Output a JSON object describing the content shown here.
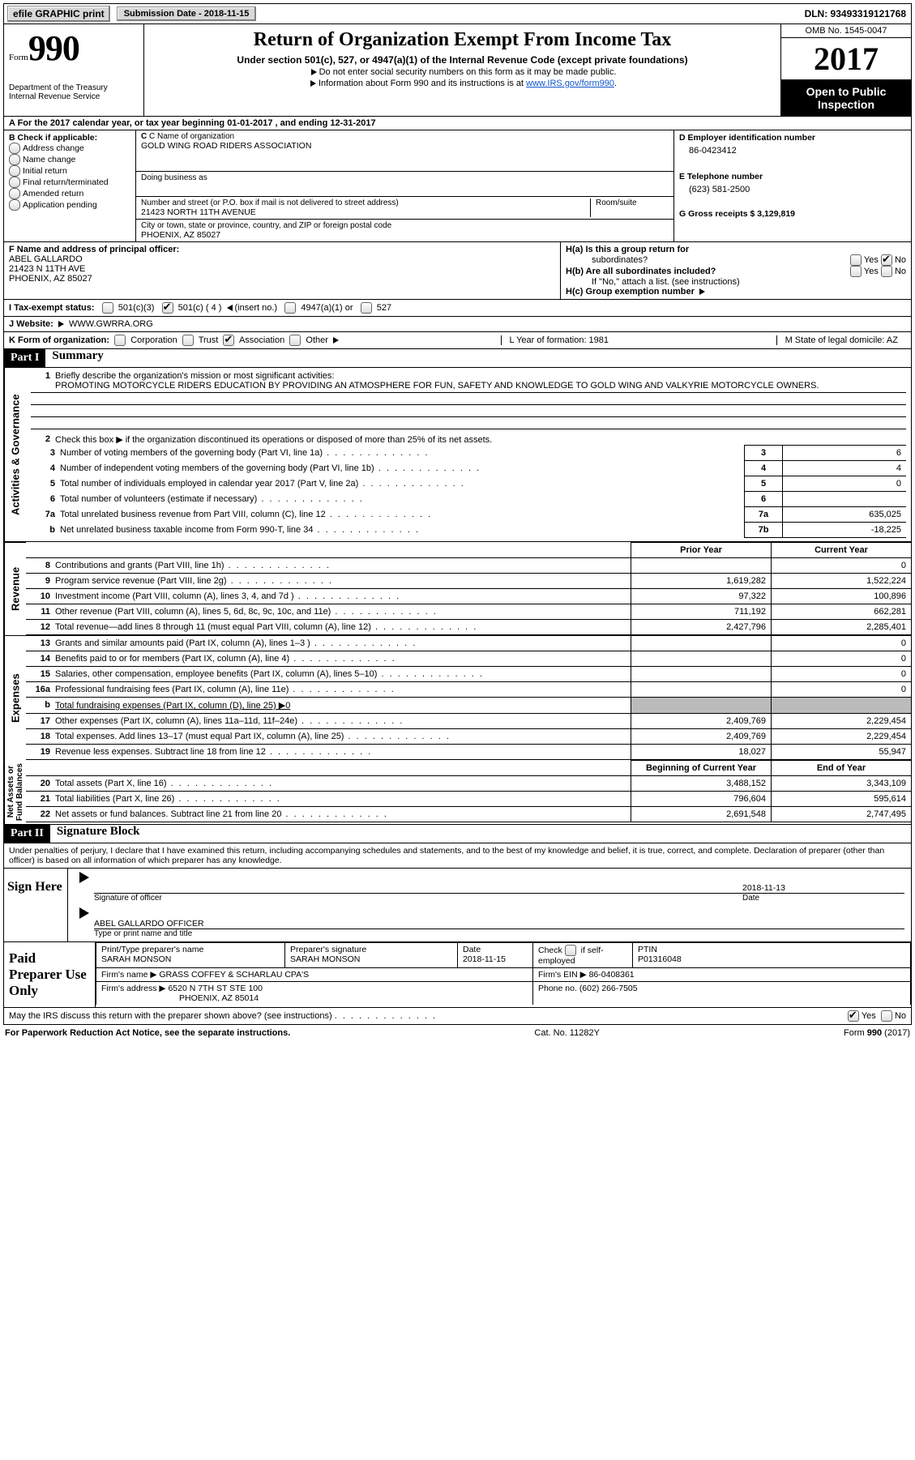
{
  "topbar": {
    "efile_label": "efile GRAPHIC print",
    "submission_label": "Submission Date - 2018-11-15",
    "dln_label": "DLN: 93493319121768"
  },
  "header": {
    "form_label": "Form",
    "form_number": "990",
    "dept1": "Department of the Treasury",
    "dept2": "Internal Revenue Service",
    "title": "Return of Organization Exempt From Income Tax",
    "subtitle": "Under section 501(c), 527, or 4947(a)(1) of the Internal Revenue Code (except private foundations)",
    "ssn_note": "Do not enter social security numbers on this form as it may be made public.",
    "info_note": "Information about Form 990 and its instructions is at ",
    "info_link": "www.IRS.gov/form990",
    "omb": "OMB No. 1545-0047",
    "year": "2017",
    "open1": "Open to Public",
    "open2": "Inspection"
  },
  "row_a": "A   For the 2017 calendar year, or tax year beginning 01-01-2017    , and ending 12-31-2017",
  "colB": {
    "label": "B Check if applicable:",
    "items": [
      "Address change",
      "Name change",
      "Initial return",
      "Final return/terminated",
      "Amended return",
      "Application pending"
    ]
  },
  "colC": {
    "name_lbl": "C Name of organization",
    "name": "GOLD WING ROAD RIDERS ASSOCIATION",
    "dba_lbl": "Doing business as",
    "addr_lbl": "Number and street (or P.O. box if mail is not delivered to street address)",
    "room_lbl": "Room/suite",
    "addr": "21423 NORTH 11TH AVENUE",
    "city_lbl": "City or town, state or province, country, and ZIP or foreign postal code",
    "city": "PHOENIX, AZ  85027"
  },
  "colD": {
    "d_lbl": "D Employer identification number",
    "d_val": "86-0423412",
    "e_lbl": "E Telephone number",
    "e_val": "(623) 581-2500",
    "g_lbl": "G Gross receipts $ 3,129,819"
  },
  "officer": {
    "lbl": "F  Name and address of principal officer:",
    "name": "ABEL GALLARDO",
    "addr1": "21423 N 11TH AVE",
    "addr2": "PHOENIX, AZ  85027"
  },
  "h_section": {
    "ha": "H(a)  Is this a group return for",
    "ha2": "subordinates?",
    "hb": "H(b)  Are all subordinates included?",
    "hb_note": "If \"No,\" attach a list. (see instructions)",
    "hc": "H(c)  Group exemption number",
    "yes": "Yes",
    "no": "No"
  },
  "row_i": {
    "lbl": "I   Tax-exempt status:",
    "o1": "501(c)(3)",
    "o2": "501(c) ( 4 )",
    "o2b": "(insert no.)",
    "o3": "4947(a)(1) or",
    "o4": "527"
  },
  "row_j": {
    "lbl": "J   Website:",
    "val": "WWW.GWRRA.ORG"
  },
  "row_k": {
    "lbl": "K Form of organization:",
    "o": [
      "Corporation",
      "Trust",
      "Association",
      "Other"
    ],
    "l": "L Year of formation: 1981",
    "m": "M State of legal domicile: AZ"
  },
  "parts": {
    "p1": "Part I",
    "p1_title": "Summary",
    "p2": "Part II",
    "p2_title": "Signature Block"
  },
  "summary": {
    "q1": "Briefly describe the organization's mission or most significant activities:",
    "mission": "PROMOTING MOTORCYCLE RIDERS EDUCATION BY PROVIDING AN ATMOSPHERE FOR FUN, SAFETY AND KNOWLEDGE TO GOLD WING AND VALKYRIE MOTORCYCLE OWNERS.",
    "q2": "Check this box ▶        if the organization discontinued its operations or disposed of more than 25% of its net assets.",
    "lines_a": [
      {
        "n": "3",
        "t": "Number of voting members of the governing body (Part VI, line 1a)",
        "b": "3",
        "v": "6"
      },
      {
        "n": "4",
        "t": "Number of independent voting members of the governing body (Part VI, line 1b)",
        "b": "4",
        "v": "4"
      },
      {
        "n": "5",
        "t": "Total number of individuals employed in calendar year 2017 (Part V, line 2a)",
        "b": "5",
        "v": "0"
      },
      {
        "n": "6",
        "t": "Total number of volunteers (estimate if necessary)",
        "b": "6",
        "v": ""
      },
      {
        "n": "7a",
        "t": "Total unrelated business revenue from Part VIII, column (C), line 12",
        "b": "7a",
        "v": "635,025"
      },
      {
        "n": "b",
        "t": "Net unrelated business taxable income from Form 990-T, line 34",
        "b": "7b",
        "v": "-18,225"
      }
    ],
    "col_hdr1": "Prior Year",
    "col_hdr2": "Current Year",
    "col_hdr3": "Beginning of Current Year",
    "col_hdr4": "End of Year",
    "revenue": [
      {
        "n": "8",
        "t": "Contributions and grants (Part VIII, line 1h)",
        "p": "",
        "c": "0"
      },
      {
        "n": "9",
        "t": "Program service revenue (Part VIII, line 2g)",
        "p": "1,619,282",
        "c": "1,522,224"
      },
      {
        "n": "10",
        "t": "Investment income (Part VIII, column (A), lines 3, 4, and 7d )",
        "p": "97,322",
        "c": "100,896"
      },
      {
        "n": "11",
        "t": "Other revenue (Part VIII, column (A), lines 5, 6d, 8c, 9c, 10c, and 11e)",
        "p": "711,192",
        "c": "662,281"
      },
      {
        "n": "12",
        "t": "Total revenue—add lines 8 through 11 (must equal Part VIII, column (A), line 12)",
        "p": "2,427,796",
        "c": "2,285,401"
      }
    ],
    "expenses": [
      {
        "n": "13",
        "t": "Grants and similar amounts paid (Part IX, column (A), lines 1–3 )",
        "p": "",
        "c": "0"
      },
      {
        "n": "14",
        "t": "Benefits paid to or for members (Part IX, column (A), line 4)",
        "p": "",
        "c": "0"
      },
      {
        "n": "15",
        "t": "Salaries, other compensation, employee benefits (Part IX, column (A), lines 5–10)",
        "p": "",
        "c": "0"
      },
      {
        "n": "16a",
        "t": "Professional fundraising fees (Part IX, column (A), line 11e)",
        "p": "",
        "c": "0"
      },
      {
        "n": "b",
        "t": "Total fundraising expenses (Part IX, column (D), line 25) ▶0",
        "p": "shade",
        "c": "shade"
      },
      {
        "n": "17",
        "t": "Other expenses (Part IX, column (A), lines 11a–11d, 11f–24e)",
        "p": "2,409,769",
        "c": "2,229,454"
      },
      {
        "n": "18",
        "t": "Total expenses. Add lines 13–17 (must equal Part IX, column (A), line 25)",
        "p": "2,409,769",
        "c": "2,229,454"
      },
      {
        "n": "19",
        "t": "Revenue less expenses. Subtract line 18 from line 12",
        "p": "18,027",
        "c": "55,947"
      }
    ],
    "assets": [
      {
        "n": "20",
        "t": "Total assets (Part X, line 16)",
        "p": "3,488,152",
        "c": "3,343,109"
      },
      {
        "n": "21",
        "t": "Total liabilities (Part X, line 26)",
        "p": "796,604",
        "c": "595,614"
      },
      {
        "n": "22",
        "t": "Net assets or fund balances. Subtract line 21 from line 20",
        "p": "2,691,548",
        "c": "2,747,495"
      }
    ],
    "tabs": {
      "ag": "Activities & Governance",
      "rev": "Revenue",
      "exp": "Expenses",
      "na": "Net Assets or\nFund Balances"
    }
  },
  "sig": {
    "penalties": "Under penalties of perjury, I declare that I have examined this return, including accompanying schedules and statements, and to the best of my knowledge and belief, it is true, correct, and complete. Declaration of preparer (other than officer) is based on all information of which preparer has any knowledge.",
    "sign_here": "Sign Here",
    "sig_officer": "Signature of officer",
    "date_lbl": "Date",
    "date_val": "2018-11-13",
    "name_title": "ABEL GALLARDO  OFFICER",
    "name_title_lbl": "Type or print name and title"
  },
  "prep": {
    "label": "Paid Preparer Use Only",
    "h1": "Print/Type preparer's name",
    "v1": "SARAH MONSON",
    "h2": "Preparer's signature",
    "v2": "SARAH MONSON",
    "h3": "Date",
    "v3": "2018-11-15",
    "h4": "Check        if self-employed",
    "h5": "PTIN",
    "v5": "P01316048",
    "firm_lbl": "Firm's name     ▶",
    "firm": "GRASS COFFEY & SCHARLAU CPA'S",
    "ein_lbl": "Firm's EIN ▶",
    "ein": "86-0408361",
    "addr_lbl": "Firm's address ▶",
    "addr1": "6520 N 7TH ST STE 100",
    "addr2": "PHOENIX, AZ  85014",
    "phone_lbl": "Phone no.",
    "phone": "(602) 266-7505"
  },
  "discuss": {
    "q": "May the IRS discuss this return with the preparer shown above? (see instructions)",
    "yes": "Yes",
    "no": "No"
  },
  "footer": {
    "left": "For Paperwork Reduction Act Notice, see the separate instructions.",
    "mid": "Cat. No. 11282Y",
    "right": "Form 990 (2017)"
  }
}
